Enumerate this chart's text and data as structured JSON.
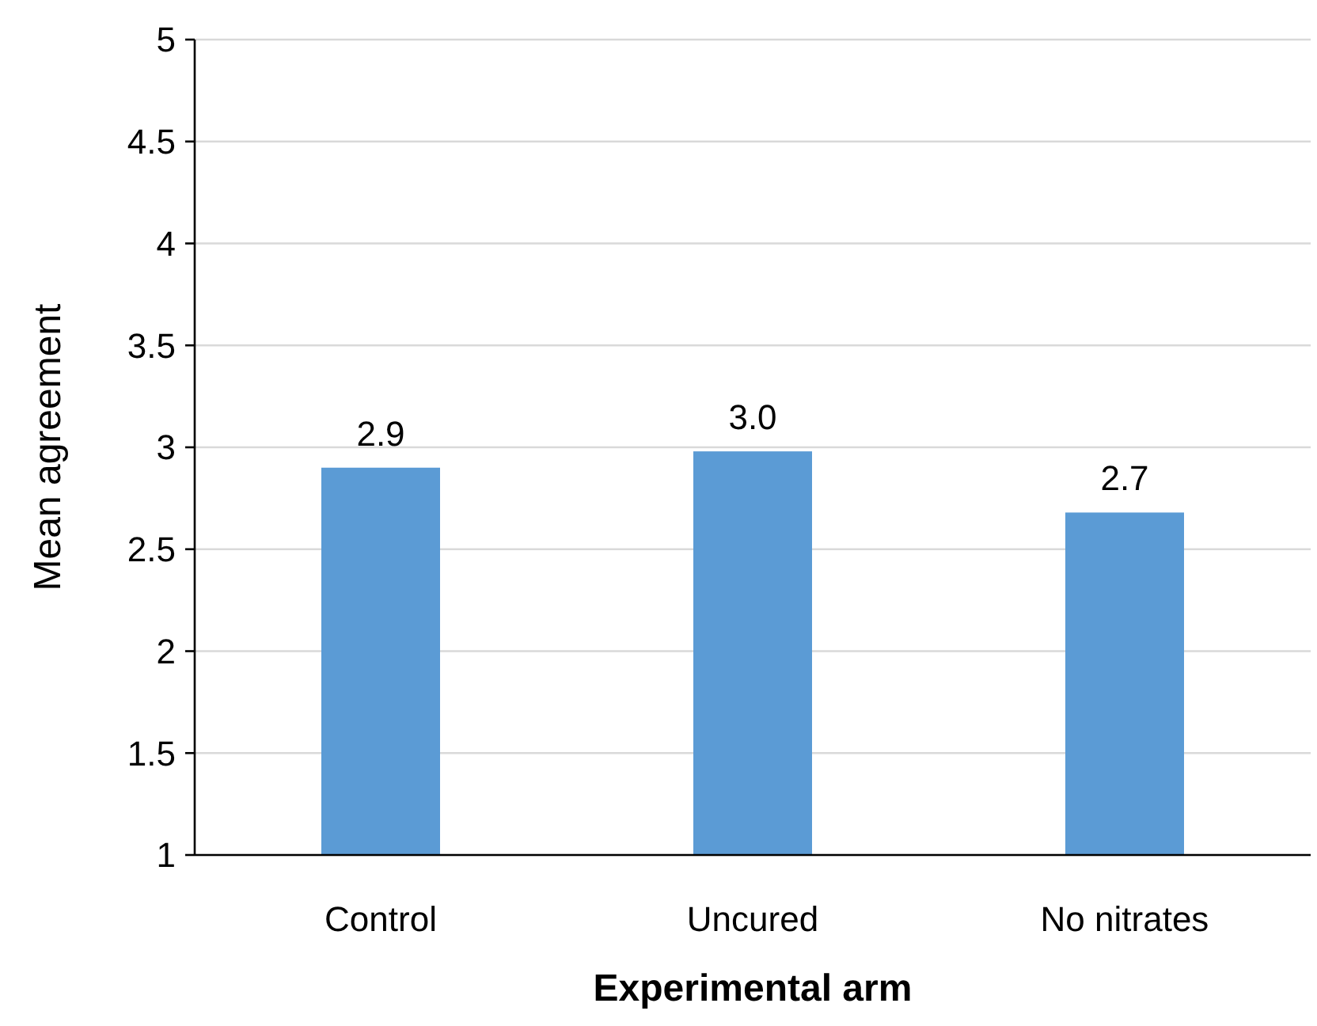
{
  "chart_data": {
    "type": "bar",
    "xlabel": "Experimental arm",
    "ylabel": "Mean agreement",
    "categories": [
      "Control",
      "Uncured",
      "No nitrates"
    ],
    "values": [
      2.9,
      2.98,
      2.68
    ],
    "value_labels": [
      "2.9",
      "3.0",
      "2.7"
    ],
    "color": "#5b9bd5",
    "ylim": [
      1,
      5
    ],
    "yticks": [
      1,
      1.5,
      2,
      2.5,
      3,
      3.5,
      4,
      4.5,
      5
    ],
    "grid": "y"
  }
}
